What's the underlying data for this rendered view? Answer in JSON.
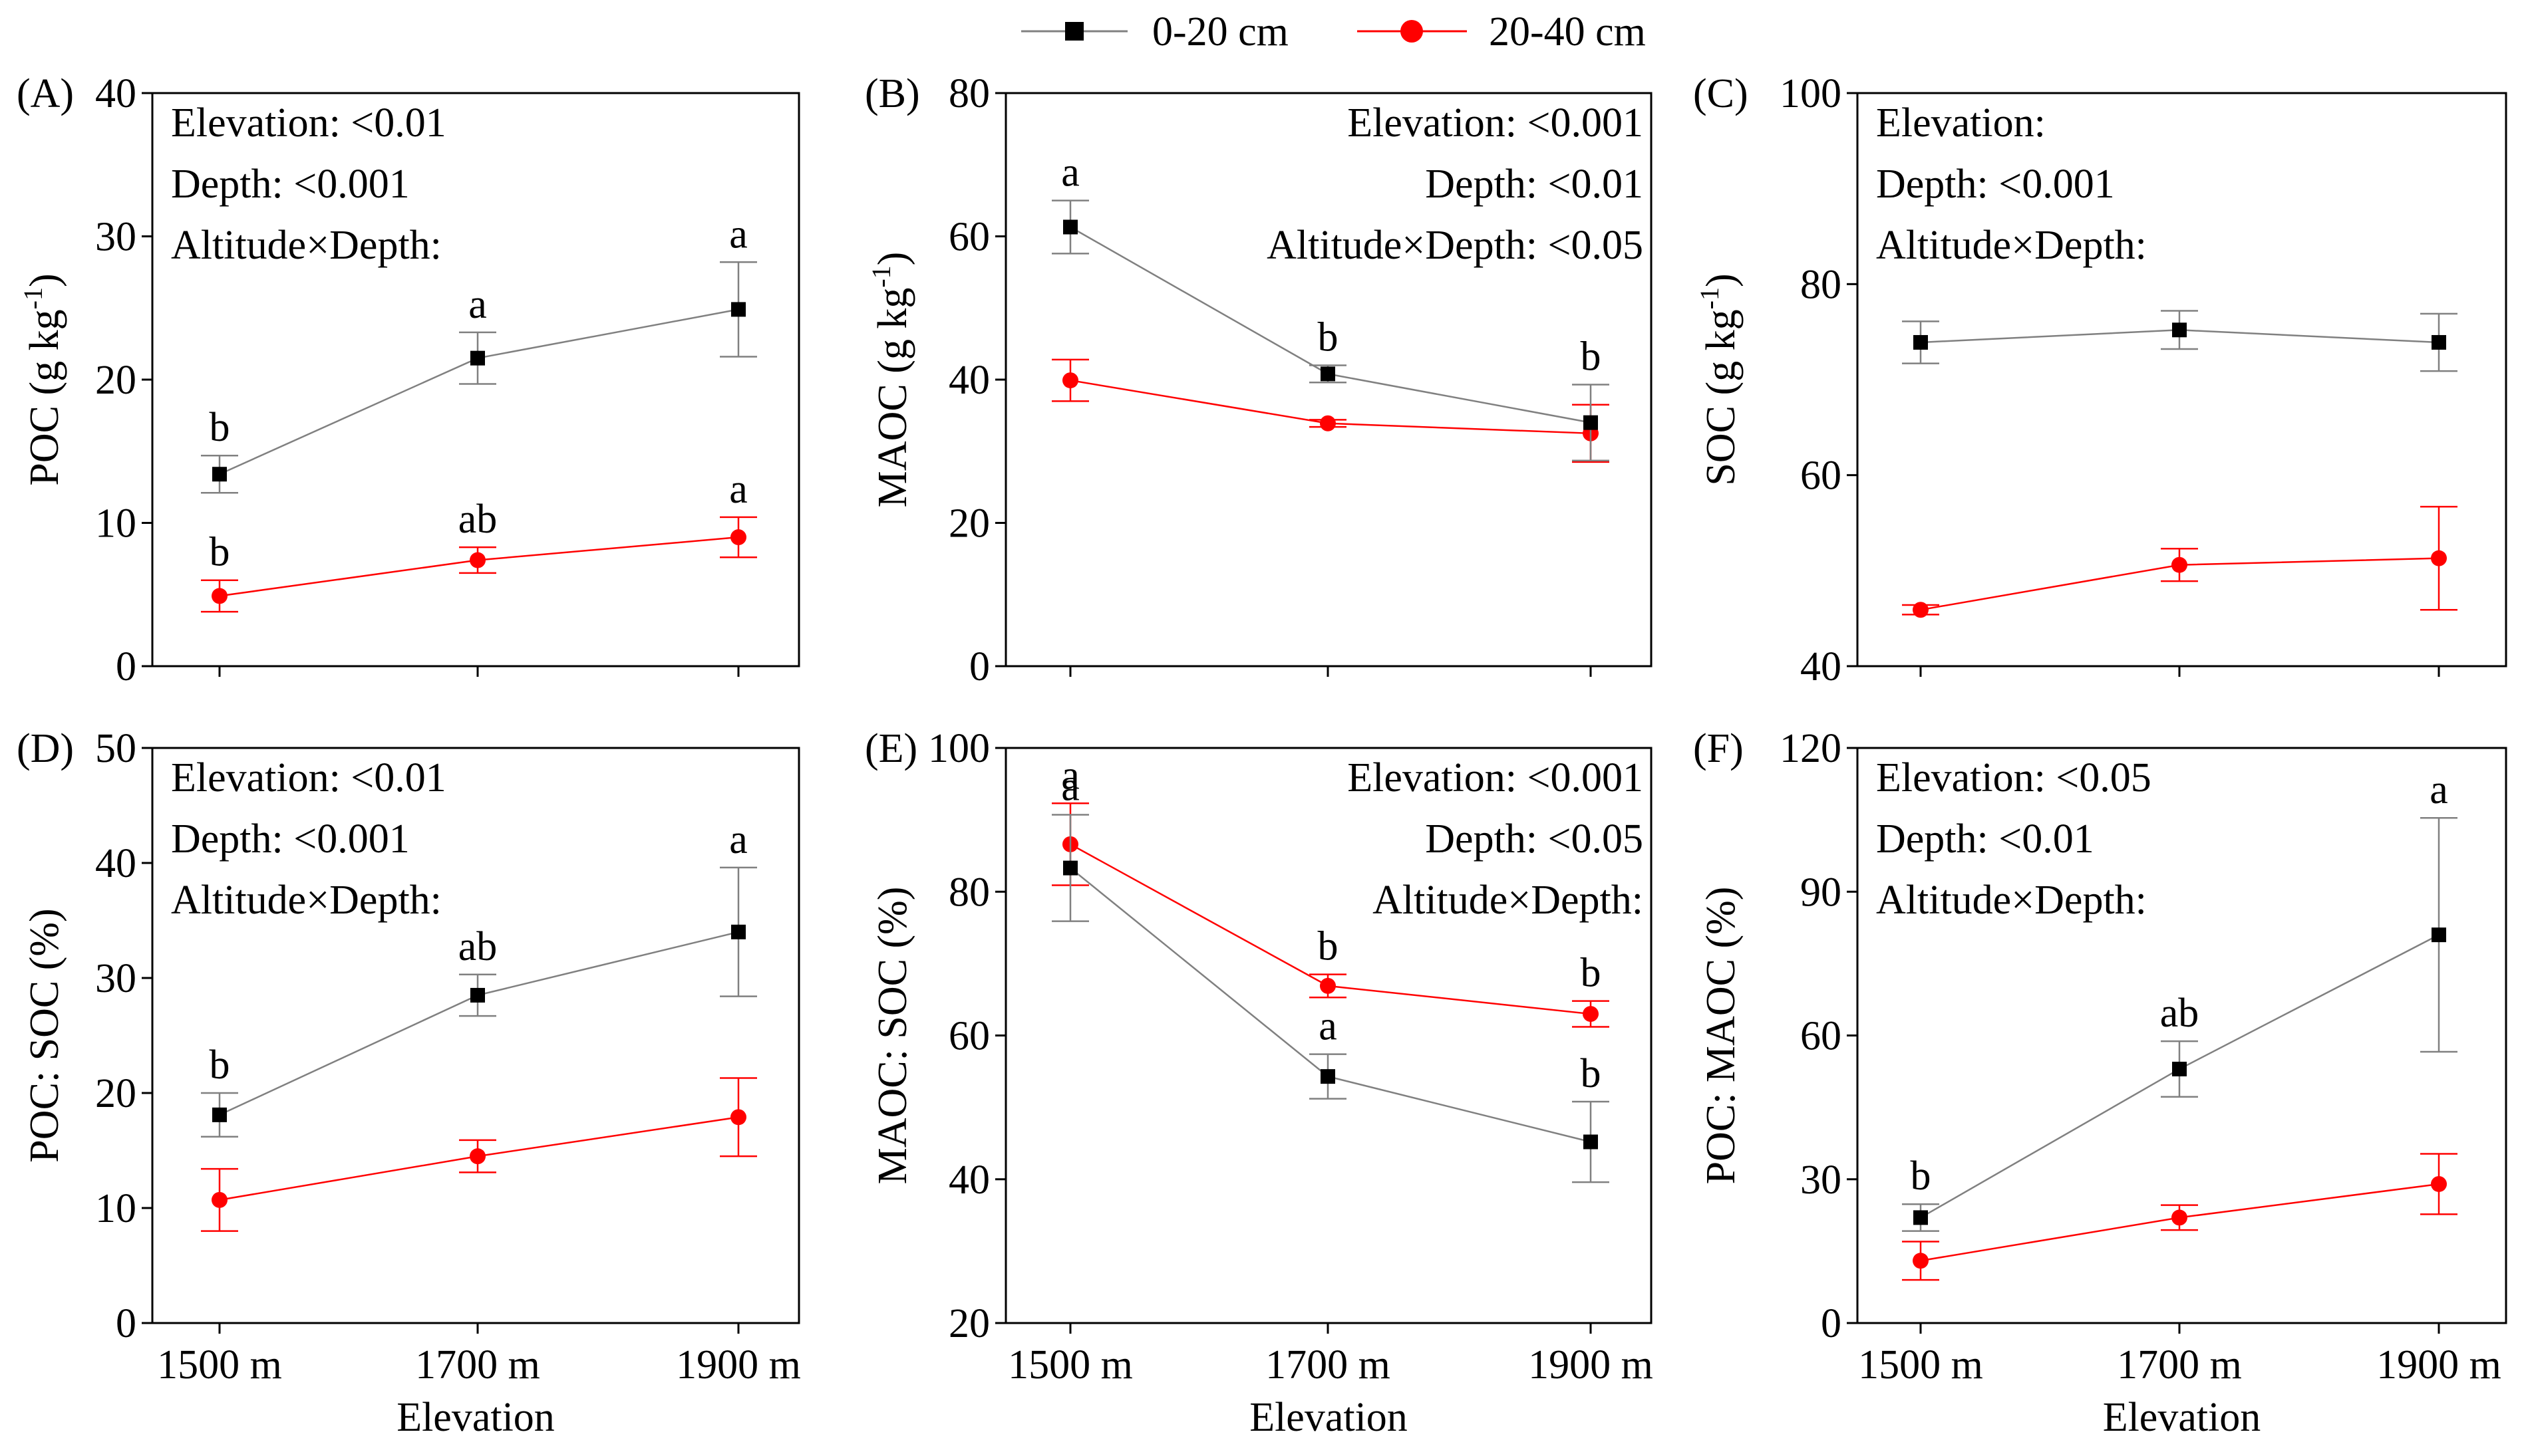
{
  "legend": {
    "items": [
      {
        "label": "0-20 cm",
        "color": "#000000",
        "marker": "square"
      },
      {
        "label": "20-40 cm",
        "color": "#ff0000",
        "marker": "circle"
      }
    ],
    "position": "top-center"
  },
  "colors": {
    "series_0_20": "#000000",
    "series_20_40": "#ff0000",
    "line_0_20": "#808080",
    "line_20_40": "#ff0000"
  },
  "chart_data": [
    {
      "type": "line",
      "panel_label": "(A)",
      "ylabel": "POC (g kg",
      "ylabel_sup": "-1",
      "ylabel_close": ")",
      "xlabel": "",
      "categories": [
        "1500 m",
        "1700 m",
        "1900 m"
      ],
      "ylim": [
        0,
        40
      ],
      "yticks": [
        "0",
        "10",
        "20",
        "30",
        "40"
      ],
      "stats": [
        "Elevation: <0.01",
        "Depth: <0.001",
        "Altitude×Depth:"
      ],
      "stats_align": "left",
      "series": [
        {
          "name": "0-20 cm",
          "values": [
            13.4,
            21.5,
            24.9
          ],
          "errors": [
            1.3,
            1.8,
            3.3
          ],
          "letters": [
            "b",
            "a",
            "a"
          ]
        },
        {
          "name": "20-40 cm",
          "values": [
            4.9,
            7.4,
            9.0
          ],
          "errors": [
            1.1,
            0.9,
            1.4
          ],
          "letters": [
            "b",
            "ab",
            "a"
          ]
        }
      ]
    },
    {
      "type": "line",
      "panel_label": "(B)",
      "ylabel": "MAOC (g kg",
      "ylabel_sup": "-1",
      "ylabel_close": ")",
      "xlabel": "",
      "categories": [
        "1500 m",
        "1700 m",
        "1900 m"
      ],
      "ylim": [
        0,
        80
      ],
      "yticks": [
        "0",
        "20",
        "40",
        "60",
        "80"
      ],
      "stats": [
        "Elevation: <0.001",
        "Depth: <0.01",
        "Altitude×Depth: <0.05"
      ],
      "stats_align": "right",
      "series": [
        {
          "name": "0-20 cm",
          "values": [
            61.3,
            40.8,
            34.0
          ],
          "errors": [
            3.7,
            1.2,
            5.3
          ],
          "letters": [
            "a",
            "b",
            "b"
          ]
        },
        {
          "name": "20-40 cm",
          "values": [
            39.9,
            33.9,
            32.5
          ],
          "errors": [
            2.9,
            0.5,
            4.0
          ],
          "letters": [
            "",
            "",
            ""
          ]
        }
      ]
    },
    {
      "type": "line",
      "panel_label": "(C)",
      "ylabel": "SOC (g kg",
      "ylabel_sup": "-1",
      "ylabel_close": ")",
      "xlabel": "",
      "categories": [
        "1500 m",
        "1700 m",
        "1900 m"
      ],
      "ylim": [
        40,
        100
      ],
      "yticks": [
        "40",
        "60",
        "80",
        "100"
      ],
      "stats": [
        "Elevation:",
        "Depth: <0.001",
        "Altitude×Depth:"
      ],
      "stats_align": "left",
      "series": [
        {
          "name": "0-20 cm",
          "values": [
            73.9,
            75.2,
            73.9
          ],
          "errors": [
            2.2,
            2.0,
            3.0
          ],
          "letters": [
            "",
            "",
            ""
          ]
        },
        {
          "name": "20-40 cm",
          "values": [
            45.9,
            50.6,
            51.3
          ],
          "errors": [
            0.5,
            1.7,
            5.4
          ],
          "letters": [
            "",
            "",
            ""
          ]
        }
      ]
    },
    {
      "type": "line",
      "panel_label": "(D)",
      "ylabel": "POC: SOC (%)",
      "ylabel_sup": "",
      "ylabel_close": "",
      "xlabel": "Elevation",
      "categories": [
        "1500 m",
        "1700 m",
        "1900 m"
      ],
      "ylim": [
        0,
        50
      ],
      "yticks": [
        "0",
        "10",
        "20",
        "30",
        "40",
        "50"
      ],
      "stats": [
        "Elevation: <0.01",
        "Depth: <0.001",
        "Altitude×Depth:"
      ],
      "stats_align": "left",
      "series": [
        {
          "name": "0-20 cm",
          "values": [
            18.1,
            28.5,
            34.0
          ],
          "errors": [
            1.9,
            1.8,
            5.6
          ],
          "letters": [
            "b",
            "ab",
            "a"
          ]
        },
        {
          "name": "20-40 cm",
          "values": [
            10.7,
            14.5,
            17.9
          ],
          "errors": [
            2.7,
            1.4,
            3.4
          ],
          "letters": [
            "",
            "",
            ""
          ]
        }
      ]
    },
    {
      "type": "line",
      "panel_label": "(E)",
      "ylabel": "MAOC: SOC (%)",
      "ylabel_sup": "",
      "ylabel_close": "",
      "xlabel": "Elevation",
      "categories": [
        "1500 m",
        "1700 m",
        "1900 m"
      ],
      "ylim": [
        20,
        100
      ],
      "yticks": [
        "20",
        "40",
        "60",
        "80",
        "100"
      ],
      "stats": [
        "Elevation: <0.001",
        "Depth: <0.05",
        "Altitude×Depth:"
      ],
      "stats_align": "right",
      "series": [
        {
          "name": "0-20 cm",
          "values": [
            83.3,
            54.3,
            45.2
          ],
          "errors": [
            7.4,
            3.1,
            5.6
          ],
          "letters": [
            "a",
            "a",
            "b"
          ]
        },
        {
          "name": "20-40 cm",
          "values": [
            86.6,
            66.9,
            63.0
          ],
          "errors": [
            5.7,
            1.6,
            1.8
          ],
          "letters": [
            "a",
            "b",
            "b"
          ]
        }
      ]
    },
    {
      "type": "line",
      "panel_label": "(F)",
      "ylabel": "POC: MAOC (%)",
      "ylabel_sup": "",
      "ylabel_close": "",
      "xlabel": "Elevation",
      "categories": [
        "1500 m",
        "1700 m",
        "1900 m"
      ],
      "ylim": [
        0,
        120
      ],
      "yticks": [
        "0",
        "30",
        "60",
        "90",
        "120"
      ],
      "stats": [
        "Elevation: <0.05",
        "Depth: <0.01",
        "Altitude×Depth:"
      ],
      "stats_align": "left",
      "series": [
        {
          "name": "0-20 cm",
          "values": [
            22.0,
            53.0,
            81.0
          ],
          "errors": [
            2.8,
            5.8,
            24.4
          ],
          "letters": [
            "b",
            "ab",
            "a"
          ]
        },
        {
          "name": "20-40 cm",
          "values": [
            13.0,
            22.0,
            29.0
          ],
          "errors": [
            4.0,
            2.6,
            6.3
          ],
          "letters": [
            "",
            "",
            ""
          ]
        }
      ]
    }
  ]
}
